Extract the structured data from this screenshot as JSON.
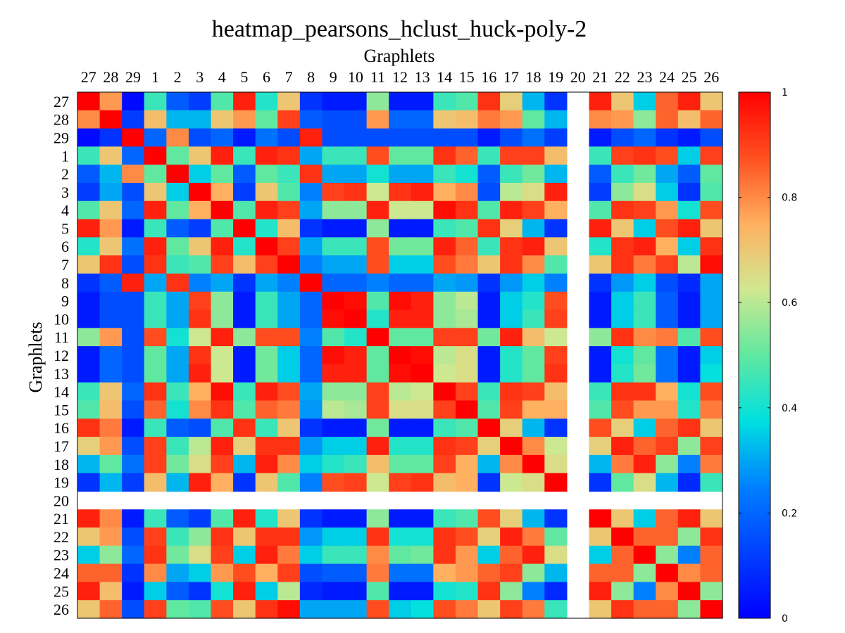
{
  "chart_data": {
    "type": "heatmap",
    "title": "heatmap_pearsons_hclust_huck-poly-2",
    "xlabel": "Graphlets",
    "ylabel": "Graphlets",
    "x_categories": [
      "27",
      "28",
      "29",
      "1",
      "2",
      "3",
      "4",
      "5",
      "6",
      "7",
      "8",
      "9",
      "10",
      "11",
      "12",
      "13",
      "14",
      "15",
      "16",
      "17",
      "18",
      "19",
      "20",
      "21",
      "22",
      "23",
      "24",
      "25",
      "26"
    ],
    "y_categories": [
      "27",
      "28",
      "29",
      "1",
      "2",
      "3",
      "4",
      "5",
      "6",
      "7",
      "8",
      "9",
      "10",
      "11",
      "12",
      "13",
      "14",
      "15",
      "16",
      "17",
      "18",
      "19",
      "20",
      "21",
      "22",
      "23",
      "24",
      "25",
      "26"
    ],
    "colorbar": {
      "min": 0,
      "max": 1,
      "ticks": [
        "0",
        "0.2",
        "0.4",
        "0.6",
        "0.8",
        "1"
      ],
      "colormap": "jet"
    },
    "values": [
      [
        1.0,
        0.78,
        0.02,
        0.45,
        0.18,
        0.12,
        0.48,
        0.95,
        0.42,
        0.7,
        0.1,
        0.05,
        0.05,
        0.55,
        0.05,
        0.05,
        0.45,
        0.48,
        0.92,
        0.68,
        0.32,
        0.1,
        null,
        0.95,
        0.7,
        0.35,
        0.85,
        0.95,
        0.7
      ],
      [
        0.8,
        1.0,
        0.12,
        0.72,
        0.32,
        0.32,
        0.7,
        0.78,
        0.5,
        0.9,
        0.18,
        0.15,
        0.15,
        0.78,
        0.2,
        0.2,
        0.7,
        0.72,
        0.82,
        0.78,
        0.5,
        0.32,
        null,
        0.8,
        0.78,
        0.55,
        0.85,
        0.72,
        0.85
      ],
      [
        0.02,
        0.1,
        1.0,
        0.2,
        0.8,
        0.15,
        0.2,
        0.05,
        0.22,
        0.15,
        0.95,
        0.15,
        0.15,
        0.15,
        0.15,
        0.15,
        0.15,
        0.15,
        0.05,
        0.15,
        0.22,
        0.12,
        null,
        0.05,
        0.15,
        0.2,
        0.1,
        0.05,
        0.15
      ],
      [
        0.45,
        0.7,
        0.2,
        1.0,
        0.5,
        0.7,
        0.95,
        0.45,
        0.95,
        0.92,
        0.3,
        0.45,
        0.45,
        0.88,
        0.5,
        0.5,
        0.92,
        0.85,
        0.45,
        0.9,
        0.9,
        0.72,
        null,
        0.45,
        0.9,
        0.92,
        0.88,
        0.35,
        0.9
      ],
      [
        0.18,
        0.32,
        0.8,
        0.5,
        1.0,
        0.35,
        0.5,
        0.18,
        0.5,
        0.45,
        0.92,
        0.3,
        0.3,
        0.4,
        0.3,
        0.3,
        0.45,
        0.4,
        0.18,
        0.45,
        0.52,
        0.32,
        null,
        0.18,
        0.45,
        0.52,
        0.3,
        0.18,
        0.5
      ],
      [
        0.12,
        0.3,
        0.15,
        0.7,
        0.35,
        1.0,
        0.75,
        0.12,
        0.7,
        0.48,
        0.25,
        0.9,
        0.92,
        0.62,
        0.92,
        0.95,
        0.75,
        0.8,
        0.15,
        0.6,
        0.65,
        0.95,
        null,
        0.12,
        0.55,
        0.65,
        0.35,
        0.1,
        0.48
      ],
      [
        0.48,
        0.7,
        0.2,
        0.95,
        0.5,
        0.75,
        1.0,
        0.48,
        0.95,
        0.9,
        0.3,
        0.55,
        0.55,
        0.95,
        0.62,
        0.62,
        0.98,
        0.92,
        0.48,
        0.95,
        0.9,
        0.75,
        null,
        0.48,
        0.92,
        0.9,
        0.78,
        0.4,
        0.88
      ],
      [
        0.95,
        0.78,
        0.05,
        0.45,
        0.18,
        0.12,
        0.48,
        1.0,
        0.42,
        0.72,
        0.1,
        0.05,
        0.05,
        0.55,
        0.05,
        0.05,
        0.45,
        0.48,
        0.92,
        0.68,
        0.32,
        0.1,
        null,
        0.95,
        0.7,
        0.35,
        0.88,
        0.95,
        0.7
      ],
      [
        0.42,
        0.7,
        0.22,
        0.95,
        0.5,
        0.7,
        0.95,
        0.42,
        1.0,
        0.9,
        0.3,
        0.45,
        0.45,
        0.88,
        0.52,
        0.52,
        0.95,
        0.85,
        0.45,
        0.92,
        0.95,
        0.7,
        null,
        0.42,
        0.92,
        0.95,
        0.75,
        0.35,
        0.92
      ],
      [
        0.7,
        0.92,
        0.15,
        0.92,
        0.45,
        0.48,
        0.9,
        0.72,
        0.9,
        1.0,
        0.25,
        0.3,
        0.3,
        0.88,
        0.35,
        0.35,
        0.88,
        0.82,
        0.7,
        0.92,
        0.8,
        0.48,
        null,
        0.7,
        0.92,
        0.82,
        0.9,
        0.6,
        0.98
      ],
      [
        0.1,
        0.18,
        0.95,
        0.3,
        0.92,
        0.25,
        0.3,
        0.1,
        0.3,
        0.25,
        1.0,
        0.2,
        0.2,
        0.25,
        0.2,
        0.2,
        0.3,
        0.28,
        0.1,
        0.28,
        0.35,
        0.25,
        null,
        0.1,
        0.28,
        0.35,
        0.15,
        0.08,
        0.3
      ],
      [
        0.05,
        0.15,
        0.15,
        0.45,
        0.3,
        0.9,
        0.55,
        0.05,
        0.45,
        0.3,
        0.2,
        1.0,
        0.98,
        0.48,
        0.98,
        0.95,
        0.55,
        0.6,
        0.05,
        0.35,
        0.42,
        0.88,
        null,
        0.05,
        0.35,
        0.45,
        0.18,
        0.05,
        0.3
      ],
      [
        0.05,
        0.15,
        0.15,
        0.45,
        0.3,
        0.92,
        0.55,
        0.05,
        0.45,
        0.3,
        0.2,
        0.98,
        1.0,
        0.42,
        0.95,
        0.95,
        0.55,
        0.58,
        0.05,
        0.35,
        0.45,
        0.9,
        null,
        0.05,
        0.35,
        0.45,
        0.18,
        0.05,
        0.3
      ],
      [
        0.55,
        0.78,
        0.15,
        0.88,
        0.4,
        0.62,
        0.95,
        0.55,
        0.88,
        0.88,
        0.25,
        0.48,
        0.42,
        1.0,
        0.5,
        0.5,
        0.9,
        0.9,
        0.52,
        0.95,
        0.72,
        0.62,
        null,
        0.55,
        0.92,
        0.8,
        0.82,
        0.48,
        0.88
      ],
      [
        0.05,
        0.2,
        0.15,
        0.5,
        0.3,
        0.92,
        0.62,
        0.05,
        0.52,
        0.35,
        0.2,
        0.98,
        0.95,
        0.5,
        1.0,
        0.98,
        0.6,
        0.65,
        0.05,
        0.42,
        0.5,
        0.9,
        null,
        0.05,
        0.4,
        0.5,
        0.22,
        0.05,
        0.35
      ],
      [
        0.05,
        0.2,
        0.15,
        0.5,
        0.3,
        0.95,
        0.62,
        0.05,
        0.52,
        0.35,
        0.2,
        0.95,
        0.95,
        0.5,
        0.98,
        1.0,
        0.62,
        0.65,
        0.05,
        0.42,
        0.5,
        0.92,
        null,
        0.05,
        0.42,
        0.52,
        0.22,
        0.05,
        0.38
      ],
      [
        0.45,
        0.7,
        0.2,
        0.92,
        0.45,
        0.75,
        0.98,
        0.45,
        0.95,
        0.88,
        0.3,
        0.55,
        0.55,
        0.9,
        0.6,
        0.62,
        1.0,
        0.9,
        0.45,
        0.92,
        0.9,
        0.72,
        null,
        0.45,
        0.92,
        0.92,
        0.75,
        0.4,
        0.88
      ],
      [
        0.48,
        0.72,
        0.15,
        0.85,
        0.4,
        0.8,
        0.92,
        0.48,
        0.85,
        0.82,
        0.28,
        0.6,
        0.58,
        0.9,
        0.65,
        0.65,
        0.9,
        1.0,
        0.48,
        0.9,
        0.75,
        0.75,
        null,
        0.48,
        0.88,
        0.78,
        0.78,
        0.42,
        0.82
      ],
      [
        0.92,
        0.82,
        0.05,
        0.45,
        0.18,
        0.15,
        0.48,
        0.92,
        0.45,
        0.7,
        0.1,
        0.05,
        0.05,
        0.52,
        0.05,
        0.05,
        0.45,
        0.48,
        1.0,
        0.68,
        0.32,
        0.1,
        null,
        0.88,
        0.68,
        0.35,
        0.85,
        0.92,
        0.7
      ],
      [
        0.68,
        0.78,
        0.15,
        0.9,
        0.45,
        0.6,
        0.95,
        0.68,
        0.92,
        0.92,
        0.28,
        0.35,
        0.35,
        0.95,
        0.42,
        0.42,
        0.92,
        0.9,
        0.68,
        1.0,
        0.8,
        0.62,
        null,
        0.68,
        0.95,
        0.85,
        0.9,
        0.55,
        0.9
      ],
      [
        0.32,
        0.5,
        0.22,
        0.9,
        0.52,
        0.65,
        0.9,
        0.32,
        0.95,
        0.8,
        0.35,
        0.42,
        0.45,
        0.72,
        0.5,
        0.5,
        0.9,
        0.75,
        0.32,
        0.8,
        1.0,
        0.65,
        null,
        0.32,
        0.82,
        0.95,
        0.55,
        0.25,
        0.82
      ],
      [
        0.1,
        0.32,
        0.12,
        0.72,
        0.32,
        0.95,
        0.75,
        0.1,
        0.7,
        0.48,
        0.25,
        0.88,
        0.9,
        0.62,
        0.9,
        0.92,
        0.72,
        0.75,
        0.1,
        0.62,
        0.65,
        1.0,
        null,
        0.1,
        0.5,
        0.65,
        0.32,
        0.08,
        0.45
      ],
      [
        null,
        null,
        null,
        null,
        null,
        null,
        null,
        null,
        null,
        null,
        null,
        null,
        null,
        null,
        null,
        null,
        null,
        null,
        null,
        null,
        null,
        null,
        null,
        null,
        null,
        null,
        null,
        null,
        null
      ],
      [
        0.95,
        0.8,
        0.05,
        0.45,
        0.18,
        0.12,
        0.48,
        0.95,
        0.42,
        0.7,
        0.1,
        0.05,
        0.05,
        0.55,
        0.05,
        0.05,
        0.45,
        0.48,
        0.88,
        0.68,
        0.32,
        0.1,
        null,
        1.0,
        0.7,
        0.35,
        0.85,
        0.95,
        0.7
      ],
      [
        0.7,
        0.78,
        0.15,
        0.9,
        0.45,
        0.55,
        0.92,
        0.7,
        0.92,
        0.92,
        0.28,
        0.35,
        0.35,
        0.92,
        0.4,
        0.4,
        0.92,
        0.88,
        0.68,
        0.95,
        0.82,
        0.5,
        null,
        0.7,
        1.0,
        0.85,
        0.85,
        0.55,
        0.92
      ],
      [
        0.35,
        0.55,
        0.2,
        0.92,
        0.52,
        0.65,
        0.9,
        0.35,
        0.95,
        0.82,
        0.35,
        0.45,
        0.45,
        0.8,
        0.5,
        0.52,
        0.92,
        0.78,
        0.35,
        0.85,
        0.95,
        0.65,
        null,
        0.35,
        0.85,
        1.0,
        0.55,
        0.25,
        0.85
      ],
      [
        0.85,
        0.85,
        0.1,
        0.8,
        0.3,
        0.35,
        0.78,
        0.88,
        0.75,
        0.9,
        0.15,
        0.18,
        0.18,
        0.82,
        0.22,
        0.22,
        0.75,
        0.78,
        0.85,
        0.9,
        0.55,
        0.32,
        null,
        0.85,
        0.85,
        0.55,
        1.0,
        0.8,
        0.85
      ],
      [
        0.95,
        0.72,
        0.05,
        0.35,
        0.18,
        0.1,
        0.4,
        0.95,
        0.35,
        0.6,
        0.08,
        0.05,
        0.05,
        0.48,
        0.05,
        0.05,
        0.4,
        0.42,
        0.92,
        0.55,
        0.25,
        0.08,
        null,
        0.95,
        0.55,
        0.25,
        0.8,
        1.0,
        0.55
      ],
      [
        0.7,
        0.85,
        0.15,
        0.9,
        0.5,
        0.48,
        0.88,
        0.7,
        0.92,
        0.98,
        0.3,
        0.3,
        0.3,
        0.88,
        0.35,
        0.38,
        0.88,
        0.82,
        0.7,
        0.9,
        0.82,
        0.45,
        null,
        0.7,
        0.92,
        0.85,
        0.85,
        0.55,
        1.0
      ]
    ]
  }
}
